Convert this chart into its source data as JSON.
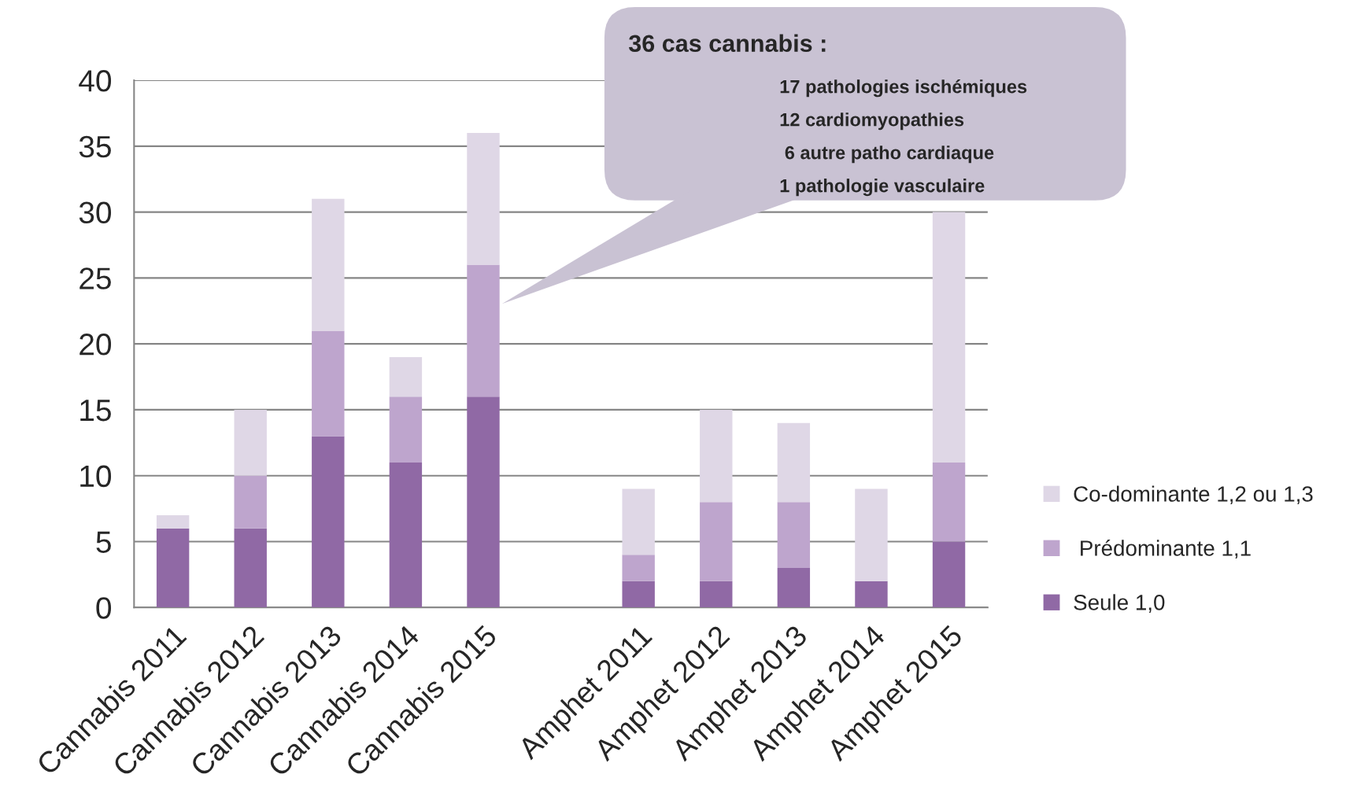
{
  "chart_data": {
    "type": "bar",
    "stacked": true,
    "categories": [
      "Cannabis 2011",
      "Cannabis 2012",
      "Cannabis 2013",
      "Cannabis 2014",
      "Cannabis 2015",
      null,
      "Amphet 2011",
      "Amphet 2012",
      "Amphet 2013",
      "Amphet 2014",
      "Amphet 2015"
    ],
    "series": [
      {
        "name": "Seule 1,0",
        "color": "#9069a5",
        "values": [
          6,
          6,
          13,
          11,
          16,
          null,
          2,
          2,
          3,
          2,
          5
        ]
      },
      {
        "name": " Prédominante 1,1",
        "color": "#bea5cd",
        "values": [
          0,
          4,
          8,
          5,
          10,
          null,
          2,
          6,
          5,
          0,
          6
        ]
      },
      {
        "name": "Co-dominante 1,2 ou 1,3",
        "color": "#dfd7e6",
        "values": [
          1,
          5,
          10,
          3,
          10,
          null,
          5,
          7,
          6,
          7,
          19
        ]
      }
    ],
    "ylim": [
      0,
      40
    ],
    "yticks": [
      0,
      5,
      10,
      15,
      20,
      25,
      30,
      35,
      40
    ],
    "grid": "y",
    "legend": "bottom right",
    "annotations": [
      "36 cas cannabis :",
      "17 pathologies ischémiques",
      "12 cardiomyopathies",
      " 6 autre patho cardiaque",
      "1 pathologie vasculaire"
    ]
  }
}
